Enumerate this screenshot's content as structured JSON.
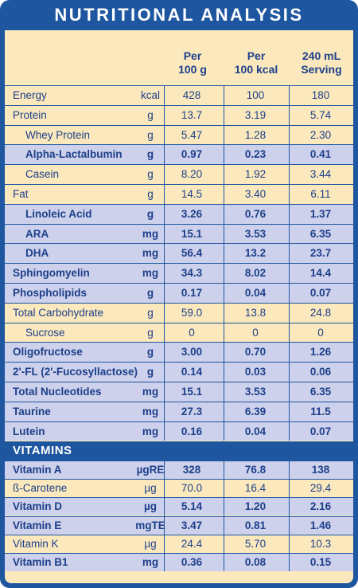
{
  "title": "NUTRITIONAL ANALYSIS",
  "headers": {
    "per100g": "Per\n100 g",
    "per100kcal": "Per\n100 kcal",
    "serving": "240 mL\nServing"
  },
  "rows": [
    {
      "label": "Energy",
      "unit": "kcal",
      "v1": "428",
      "v2": "100",
      "v3": "180",
      "bg": "tan",
      "indent": 0
    },
    {
      "label": "Protein",
      "unit": "g",
      "v1": "13.7",
      "v2": "3.19",
      "v3": "5.74",
      "bg": "tan",
      "indent": 0
    },
    {
      "label": "Whey Protein",
      "unit": "g",
      "v1": "5.47",
      "v2": "1.28",
      "v3": "2.30",
      "bg": "tan",
      "indent": 1
    },
    {
      "label": "Alpha-Lactalbumin",
      "unit": "g",
      "v1": "0.97",
      "v2": "0.23",
      "v3": "0.41",
      "bg": "lav",
      "indent": 1
    },
    {
      "label": "Casein",
      "unit": "g",
      "v1": "8.20",
      "v2": "1.92",
      "v3": "3.44",
      "bg": "tan",
      "indent": 1
    },
    {
      "label": "Fat",
      "unit": "g",
      "v1": "14.5",
      "v2": "3.40",
      "v3": "6.11",
      "bg": "tan",
      "indent": 0
    },
    {
      "label": "Linoleic Acid",
      "unit": "g",
      "v1": "3.26",
      "v2": "0.76",
      "v3": "1.37",
      "bg": "lav",
      "indent": 1
    },
    {
      "label": "ARA",
      "unit": "mg",
      "v1": "15.1",
      "v2": "3.53",
      "v3": "6.35",
      "bg": "lav",
      "indent": 1
    },
    {
      "label": "DHA",
      "unit": "mg",
      "v1": "56.4",
      "v2": "13.2",
      "v3": "23.7",
      "bg": "lav",
      "indent": 1
    },
    {
      "label": "Sphingomyelin",
      "unit": "mg",
      "v1": "34.3",
      "v2": "8.02",
      "v3": "14.4",
      "bg": "lav",
      "indent": 0
    },
    {
      "label": "Phospholipids",
      "unit": "g",
      "v1": "0.17",
      "v2": "0.04",
      "v3": "0.07",
      "bg": "lav",
      "indent": 0
    },
    {
      "label": "Total Carbohydrate",
      "unit": "g",
      "v1": "59.0",
      "v2": "13.8",
      "v3": "24.8",
      "bg": "tan",
      "indent": 0
    },
    {
      "label": "Sucrose",
      "unit": "g",
      "v1": "0",
      "v2": "0",
      "v3": "0",
      "bg": "tan",
      "indent": 1
    },
    {
      "label": "Oligofructose",
      "unit": "g",
      "v1": "3.00",
      "v2": "0.70",
      "v3": "1.26",
      "bg": "lav",
      "indent": 0
    },
    {
      "label": "2'-FL (2'-Fucosyllactose)",
      "unit": "g",
      "v1": "0.14",
      "v2": "0.03",
      "v3": "0.06",
      "bg": "lav",
      "indent": 0
    },
    {
      "label": "Total Nucleotides",
      "unit": "mg",
      "v1": "15.1",
      "v2": "3.53",
      "v3": "6.35",
      "bg": "lav",
      "indent": 0
    },
    {
      "label": "Taurine",
      "unit": "mg",
      "v1": "27.3",
      "v2": "6.39",
      "v3": "11.5",
      "bg": "lav",
      "indent": 0
    },
    {
      "label": "Lutein",
      "unit": "mg",
      "v1": "0.16",
      "v2": "0.04",
      "v3": "0.07",
      "bg": "lav",
      "indent": 0
    }
  ],
  "vitamins_title": "VITAMINS",
  "vitamins": [
    {
      "label": "Vitamin A",
      "unit": "µgRE",
      "v1": "328",
      "v2": "76.8",
      "v3": "138",
      "bg": "lav"
    },
    {
      "label": "ß-Carotene",
      "unit": "µg",
      "v1": "70.0",
      "v2": "16.4",
      "v3": "29.4",
      "bg": "tan"
    },
    {
      "label": "Vitamin D",
      "unit": "µg",
      "v1": "5.14",
      "v2": "1.20",
      "v3": "2.16",
      "bg": "lav"
    },
    {
      "label": "Vitamin E",
      "unit": "mgTE",
      "v1": "3.47",
      "v2": "0.81",
      "v3": "1.46",
      "bg": "lav"
    },
    {
      "label": "Vitamin K",
      "unit": "µg",
      "v1": "24.4",
      "v2": "5.70",
      "v3": "10.3",
      "bg": "tan"
    },
    {
      "label": "Vitamin B1",
      "unit": "mg",
      "v1": "0.36",
      "v2": "0.08",
      "v3": "0.15",
      "bg": "lav"
    }
  ],
  "colors": {
    "frame": "#1e56a0",
    "tan": "#fbe9bd",
    "lavender": "#cdd1eb",
    "text": "#1d3f8a"
  }
}
